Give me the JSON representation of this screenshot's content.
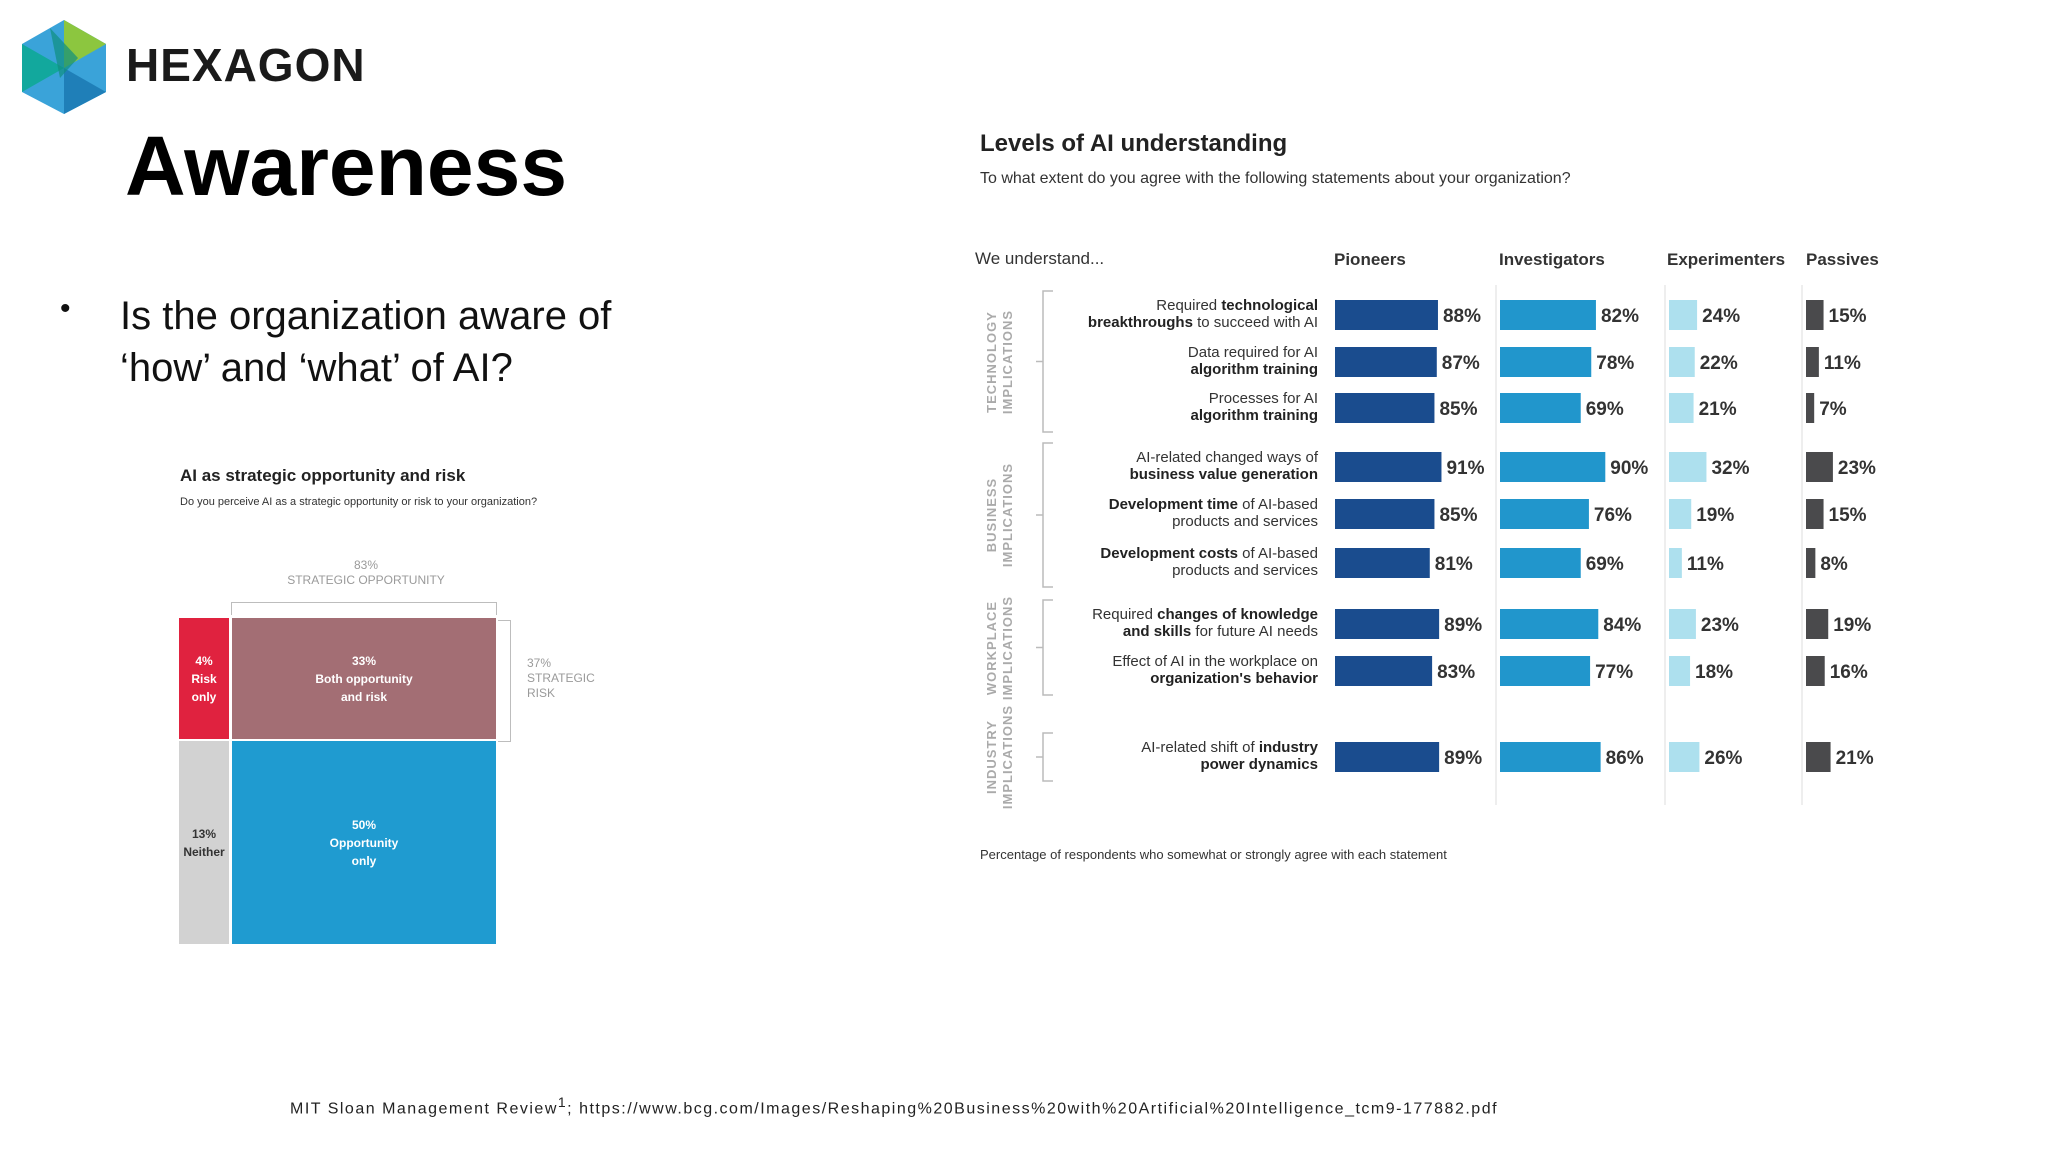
{
  "brand": {
    "name": "HEXAGON"
  },
  "slide": {
    "title": "Awareness",
    "bullet_symbol": "•",
    "bullets": [
      "Is the organization aware of ‘how’ and ‘what’ of AI?"
    ],
    "footnote_source": "MIT Sloan Management Review",
    "footnote_marker": "1",
    "footnote_url": "; https://www.bcg.com/Images/Reshaping%20Business%20with%20Artificial%20Intelligence_tcm9-177882.pdf"
  },
  "colors": {
    "risk_only": "#e0223f",
    "both": "#a36e74",
    "opportunity_only": "#1f9bd0",
    "neither": "#d2d2d2",
    "pioneers": "#1a4c8e",
    "investigators": "#2196cc",
    "experimenters": "#ade0ee",
    "passives": "#4a4a4c",
    "logo_green": "#8cc63f",
    "logo_teal": "#12a89d",
    "logo_blue": "#3aa3d9"
  },
  "chart_data": [
    {
      "type": "mosaic",
      "title": "AI as strategic opportunity and risk",
      "subtitle": "Do you perceive AI as a strategic opportunity or risk to your organization?",
      "annotations": {
        "opportunity_total": "83%",
        "opportunity_label": "STRATEGIC OPPORTUNITY",
        "risk_total": "37%",
        "risk_label_1": "STRATEGIC",
        "risk_label_2": "RISK"
      },
      "segments": [
        {
          "key": "risk_only",
          "value": 4,
          "pct": "4%",
          "line1": "Risk",
          "line2": "only"
        },
        {
          "key": "both",
          "value": 33,
          "pct": "33%",
          "line1": "Both opportunity",
          "line2": "and risk"
        },
        {
          "key": "neither",
          "value": 13,
          "pct": "13%",
          "line1": "Neither",
          "line2": ""
        },
        {
          "key": "opportunity_only",
          "value": 50,
          "pct": "50%",
          "line1": "Opportunity",
          "line2": "only"
        }
      ]
    },
    {
      "type": "bar",
      "title": "Levels of AI understanding",
      "subtitle": "To what extent do you agree with the following statements about your organization?",
      "row_header": "We understand...",
      "footnote": "Percentage of respondents who somewhat or strongly agree with each statement",
      "series_names": [
        "Pioneers",
        "Investigators",
        "Experimenters",
        "Passives"
      ],
      "groups": [
        {
          "label1": "TECHNOLOGY",
          "label2": "IMPLICATIONS"
        },
        {
          "label1": "BUSINESS",
          "label2": "IMPLICATIONS"
        },
        {
          "label1": "WORKPLACE",
          "label2": "IMPLICATIONS"
        },
        {
          "label1": "INDUSTRY",
          "label2": "IMPLICATIONS"
        }
      ],
      "rows": [
        {
          "group": 0,
          "line1": "Required <b>technological</b>",
          "line2": "<b>breakthroughs</b> to succeed with AI",
          "values": [
            88,
            82,
            24,
            15
          ]
        },
        {
          "group": 0,
          "line1": "Data required for AI",
          "line2": "<b>algorithm training</b>",
          "values": [
            87,
            78,
            22,
            11
          ]
        },
        {
          "group": 0,
          "line1": "Processes for AI",
          "line2": "<b>algorithm training</b>",
          "values": [
            85,
            69,
            21,
            7
          ]
        },
        {
          "group": 1,
          "line1": "AI-related changed ways of",
          "line2": "<b>business value generation</b>",
          "values": [
            91,
            90,
            32,
            23
          ]
        },
        {
          "group": 1,
          "line1": "<b>Development time</b> of AI-based",
          "line2": "products and services",
          "values": [
            85,
            76,
            19,
            15
          ]
        },
        {
          "group": 1,
          "line1": "<b>Development costs</b> of AI-based",
          "line2": "products and services",
          "values": [
            81,
            69,
            11,
            8
          ]
        },
        {
          "group": 2,
          "line1": "Required <b>changes of knowledge</b>",
          "line2": "<b>and skills</b> for future AI needs",
          "values": [
            89,
            84,
            23,
            19
          ]
        },
        {
          "group": 2,
          "line1": "Effect of AI in the workplace on",
          "line2": "<b>organization's behavior</b>",
          "values": [
            83,
            77,
            18,
            16
          ]
        },
        {
          "group": 3,
          "line1": "AI-related shift of <b>industry</b>",
          "line2": "<b>power dynamics</b>",
          "values": [
            89,
            86,
            26,
            21
          ]
        }
      ],
      "value_suffix": "%",
      "xlim": [
        0,
        100
      ]
    }
  ]
}
